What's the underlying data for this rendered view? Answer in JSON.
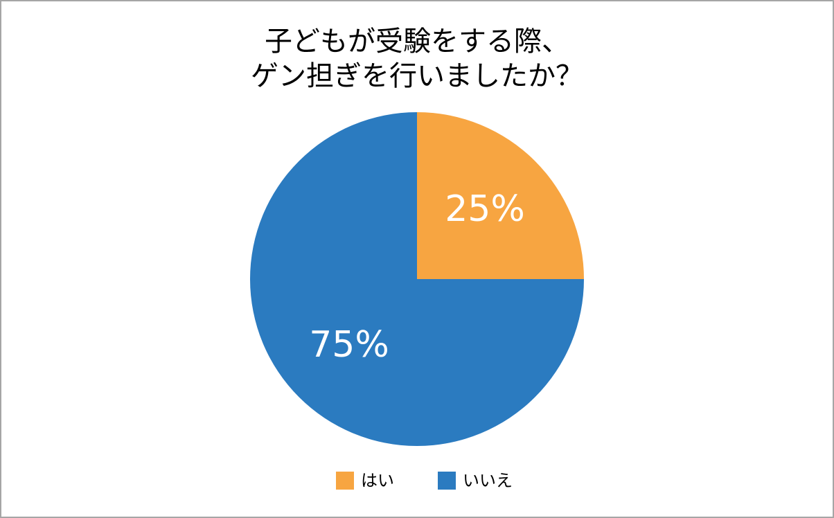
{
  "chart_data": {
    "type": "pie",
    "title": [
      "子どもが受験をする際、",
      "ゲン担ぎを行いましたか？"
    ],
    "categories": [
      "はい",
      "いいえ"
    ],
    "values": [
      25,
      75
    ],
    "value_labels": [
      "25%",
      "75%"
    ],
    "colors": [
      "#f7a541",
      "#2b7bc0"
    ],
    "legend": "bottom"
  }
}
